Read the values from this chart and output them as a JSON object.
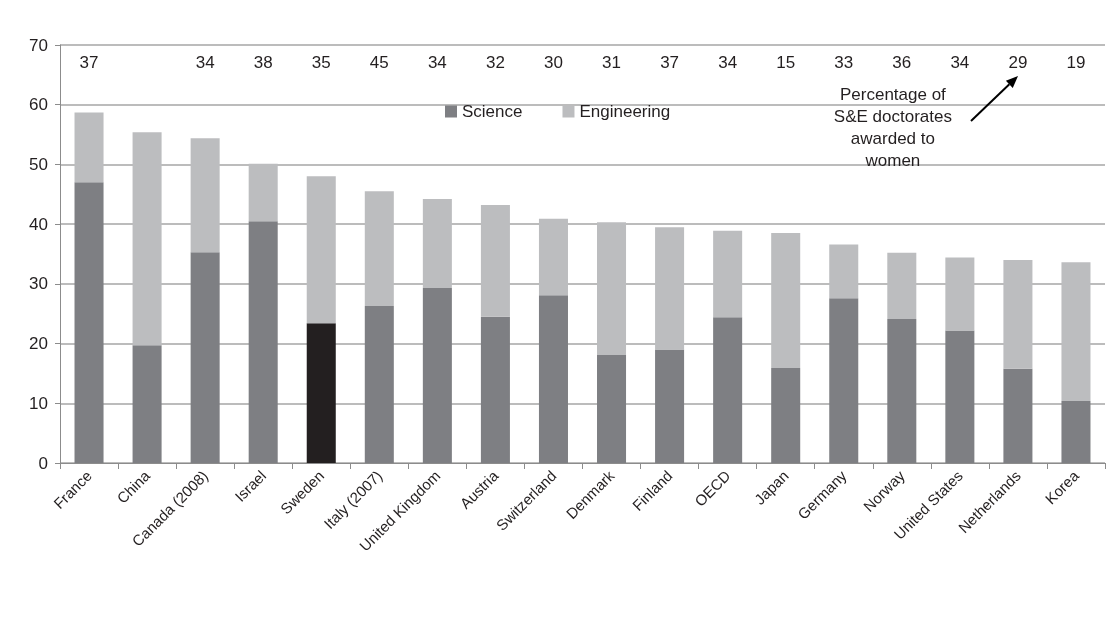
{
  "chart_data": {
    "type": "bar",
    "stacked": true,
    "categories": [
      "France",
      "China",
      "Canada (2008)",
      "Israel",
      "Sweden",
      "Italy (2007)",
      "United Kingdom",
      "Austria",
      "Switzerland",
      "Denmark",
      "Finland",
      "OECD",
      "Japan",
      "Germany",
      "Norway",
      "United States",
      "Netherlands",
      "Korea"
    ],
    "series": [
      {
        "name": "Science",
        "color": "#7e7f83",
        "colors": [
          "#7e7f83",
          "#7e7f83",
          "#7e7f83",
          "#7e7f83",
          "#231f20",
          "#7e7f83",
          "#7e7f83",
          "#7e7f83",
          "#7e7f83",
          "#7e7f83",
          "#7e7f83",
          "#7e7f83",
          "#7e7f83",
          "#7e7f83",
          "#7e7f83",
          "#7e7f83",
          "#7e7f83",
          "#7e7f83"
        ],
        "values": [
          47,
          19.7,
          35.3,
          40.5,
          23.4,
          26.3,
          29.3,
          24.5,
          28.1,
          18.1,
          19,
          24.4,
          15.9,
          27.6,
          24.1,
          22.2,
          15.8,
          10.4
        ]
      },
      {
        "name": "Engineering",
        "color": "#bcbdbf",
        "values": [
          11.7,
          35.7,
          19.1,
          9.6,
          24.6,
          19.2,
          14.9,
          18.7,
          12.8,
          22.2,
          20.5,
          14.5,
          22.6,
          9,
          11.1,
          12.2,
          18.2,
          23.2
        ]
      }
    ],
    "ylim": [
      0,
      70
    ],
    "yticks": [
      0,
      10,
      20,
      30,
      40,
      50,
      60,
      70
    ],
    "grid": "y",
    "legend": "top",
    "annotations": [
      "37",
      "34",
      "38",
      "35",
      "45",
      "34",
      "32",
      "30",
      "31",
      "37",
      "34",
      "15",
      "33",
      "36",
      "34",
      "29",
      "19",
      "Percentage of\nS&E doctorates\nawarded to\nwomen"
    ]
  }
}
